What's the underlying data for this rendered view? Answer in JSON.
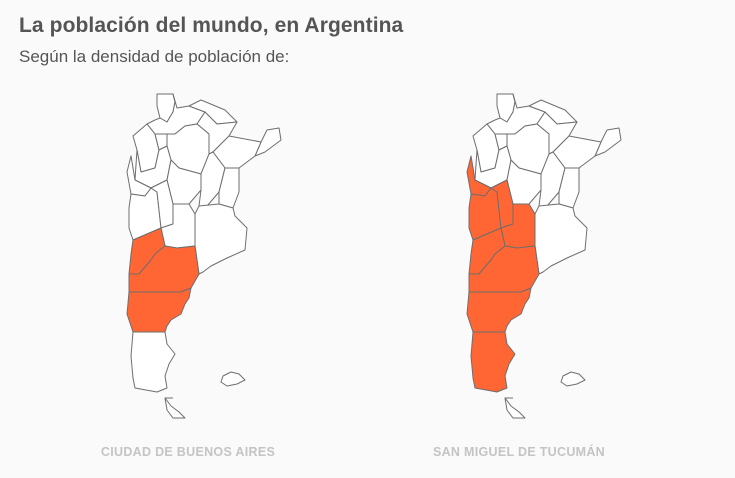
{
  "header": {
    "title": "La población del mundo, en Argentina",
    "subtitle": "Según la densidad de población de:"
  },
  "maps": [
    {
      "label": "CIUDAD DE BUENOS AIRES",
      "highlighted_provinces": [
        "Neuquén",
        "Río Negro",
        "Chubut"
      ]
    },
    {
      "label": "SAN MIGUEL DE TUCUMÁN",
      "highlighted_provinces": [
        "San Juan",
        "Mendoza",
        "San Luis",
        "La Pampa",
        "Neuquén",
        "Río Negro",
        "Chubut",
        "Santa Cruz"
      ]
    }
  ],
  "colors": {
    "highlight": "#ff6633",
    "base": "#ffffff",
    "outline": "#6e6e6e",
    "text": "#555555",
    "label": "#c4c4c4"
  }
}
